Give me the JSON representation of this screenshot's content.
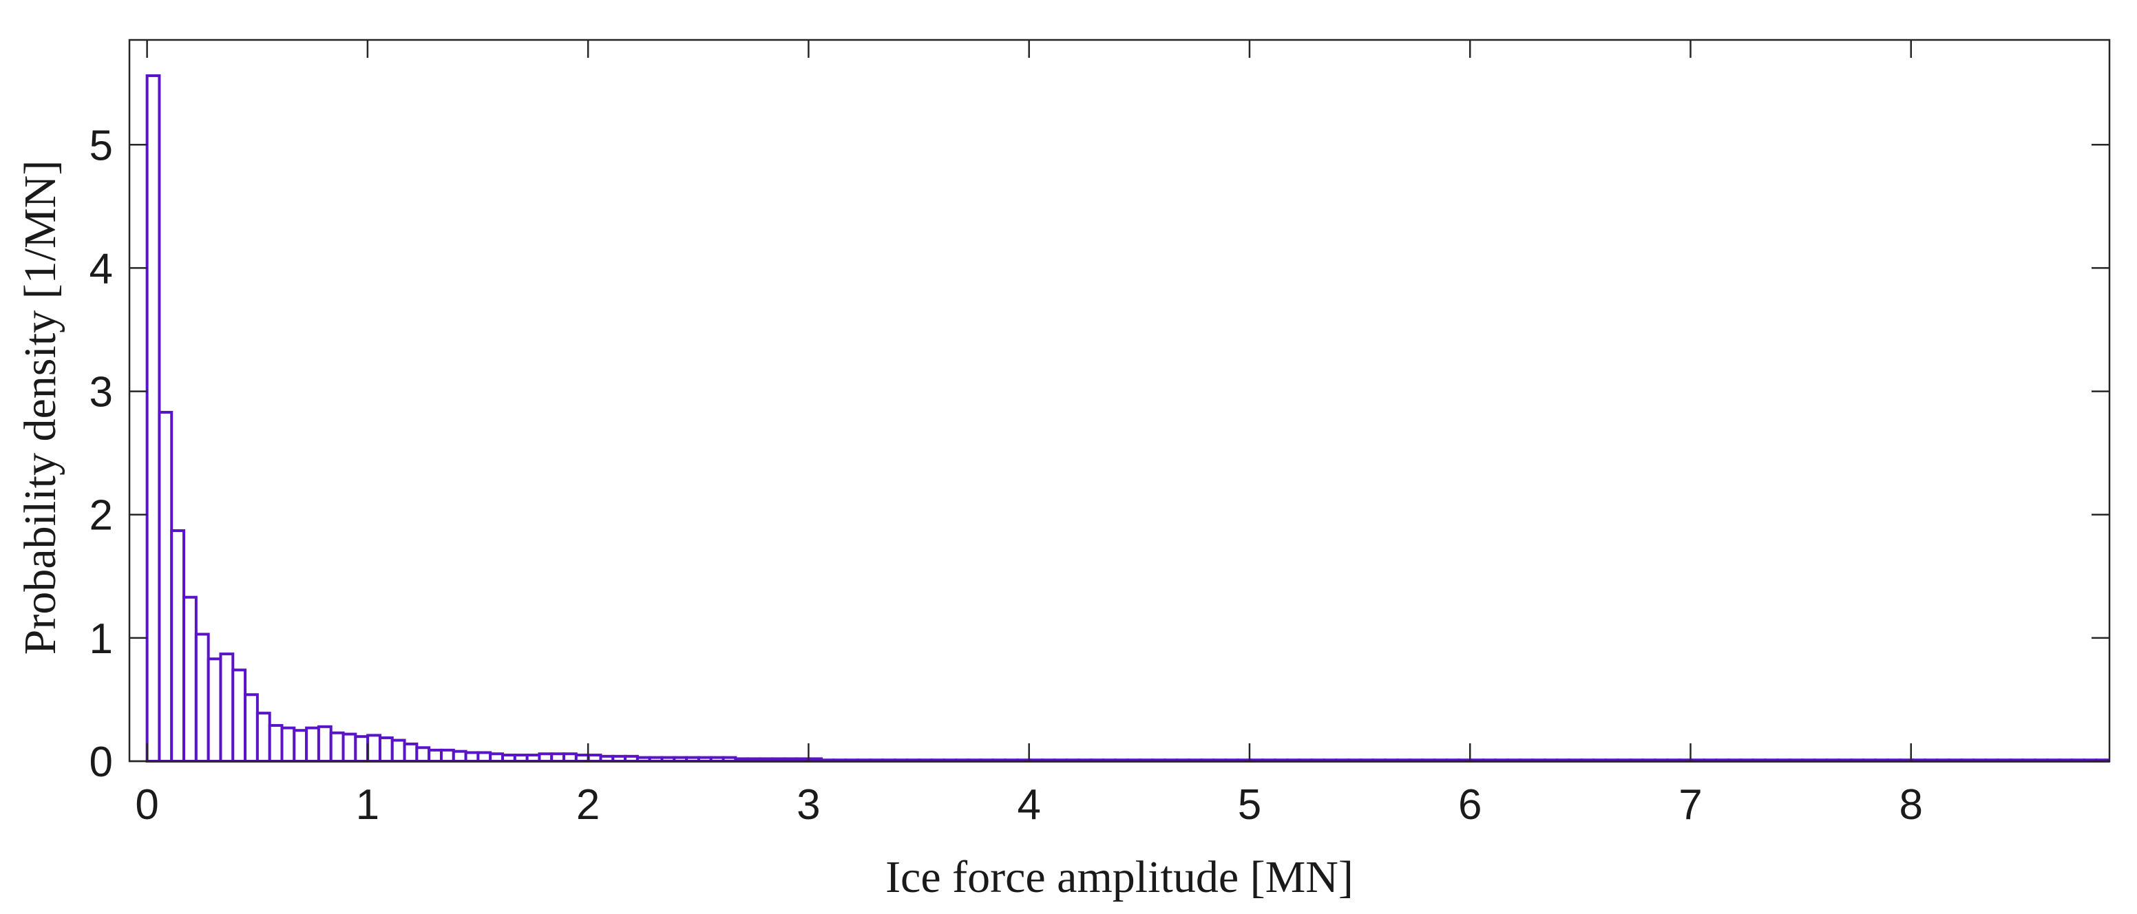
{
  "chart_data": {
    "type": "bar",
    "subtype": "histogram",
    "title": "",
    "xlabel": "Ice force amplitude [MN]",
    "ylabel": "Probability density [1/MN]",
    "xlim": [
      -0.08,
      8.9
    ],
    "ylim": [
      0,
      5.85
    ],
    "xticks": [
      0,
      1,
      2,
      3,
      4,
      5,
      6,
      7,
      8
    ],
    "yticks": [
      0,
      1,
      2,
      3,
      4,
      5
    ],
    "xtick_labels": [
      "0",
      "1",
      "2",
      "3",
      "4",
      "5",
      "6",
      "7",
      "8"
    ],
    "ytick_labels": [
      "0",
      "1",
      "2",
      "3",
      "4",
      "5"
    ],
    "bin_width": 0.0556,
    "values": [
      5.56,
      2.83,
      1.87,
      1.33,
      1.03,
      0.83,
      0.87,
      0.74,
      0.54,
      0.39,
      0.29,
      0.27,
      0.25,
      0.27,
      0.28,
      0.23,
      0.22,
      0.2,
      0.21,
      0.19,
      0.17,
      0.14,
      0.11,
      0.09,
      0.09,
      0.08,
      0.07,
      0.07,
      0.06,
      0.05,
      0.05,
      0.05,
      0.06,
      0.06,
      0.06,
      0.05,
      0.05,
      0.04,
      0.04,
      0.04,
      0.03,
      0.03,
      0.03,
      0.03,
      0.03,
      0.03,
      0.03,
      0.03,
      0.02,
      0.02,
      0.02,
      0.02,
      0.02,
      0.02,
      0.02,
      0.01,
      0.01,
      0.01,
      0.01,
      0.01,
      0.01,
      0.01,
      0.01,
      0.01,
      0.01,
      0.01,
      0.01,
      0.01,
      0.01,
      0.01,
      0.01,
      0.01,
      0.01,
      0.01,
      0.01,
      0.01,
      0.01,
      0.01,
      0.01,
      0.01,
      0.01,
      0.01,
      0.01,
      0.01,
      0.01,
      0.01,
      0.01,
      0.01,
      0.01,
      0.01,
      0.01,
      0.01,
      0.01,
      0.01,
      0.01,
      0.01,
      0.01,
      0.01,
      0.01,
      0.01,
      0.01,
      0.01,
      0.01,
      0.01,
      0.01,
      0.01,
      0.01,
      0.01,
      0.01,
      0.01,
      0.01,
      0.01,
      0.01,
      0.01,
      0.01,
      0.01,
      0.01,
      0.01,
      0.01,
      0.01,
      0.01,
      0.01,
      0.01,
      0.01,
      0.01,
      0.01,
      0.01,
      0.01,
      0.01,
      0.01,
      0.01,
      0.01,
      0.01,
      0.01,
      0.01,
      0.01,
      0.01,
      0.01,
      0.01,
      0.01,
      0.01,
      0.01,
      0.01,
      0.01,
      0.01,
      0.01,
      0.01,
      0.01,
      0.01,
      0.01,
      0.01,
      0.01,
      0.01,
      0.01,
      0.01,
      0.01,
      0.01,
      0.01,
      0.01,
      0.01
    ],
    "grid": false,
    "legend": "none",
    "colors": {
      "bar_edge": "#5a14c8",
      "bar_fill": "#ffffff",
      "axis": "#262626"
    }
  }
}
